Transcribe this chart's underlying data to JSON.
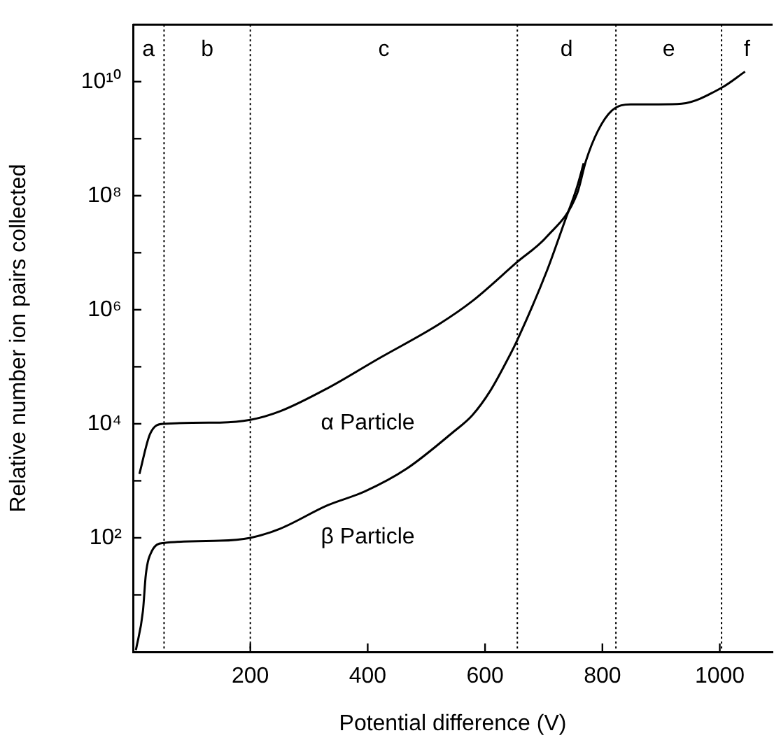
{
  "chart_data": {
    "type": "line",
    "xlabel": "Potential difference (V)",
    "ylabel": "Relative number ion pairs collected",
    "log": "y",
    "xlim": [
      0,
      1090
    ],
    "xticks": [
      200,
      400,
      600,
      800,
      1000
    ],
    "ylim": [
      1,
      100000000000
    ],
    "yticks": [
      {
        "value": 10,
        "label": null
      },
      {
        "value": 100,
        "label": "10²"
      },
      {
        "value": 1000,
        "label": null
      },
      {
        "value": 10000,
        "label": "10⁴"
      },
      {
        "value": 100000,
        "label": null
      },
      {
        "value": 1000000,
        "label": "10⁶"
      },
      {
        "value": 10000000,
        "label": null
      },
      {
        "value": 100000000,
        "label": "10⁸"
      },
      {
        "value": 1000000000,
        "label": null
      },
      {
        "value": 10000000000,
        "label": "10¹⁰"
      }
    ],
    "grid": false,
    "legend": false,
    "marker": "none",
    "line_style": "solid",
    "series": [
      {
        "name": "α Particle",
        "color": "#000000",
        "x": [
          11,
          29,
          52,
          148,
          200,
          251,
          331,
          418,
          522,
          578,
          655,
          705,
          757,
          772,
          792,
          816,
          848,
          896,
          935,
          1003,
          1043
        ],
        "values": [
          1320,
          6600,
          10000,
          10500,
          11700,
          16600,
          41700,
          138000,
          562000,
          1410000,
          6900000,
          19000000,
          110000000,
          410000000,
          1350000000,
          3100000000,
          4000000000,
          4000000000,
          4100000000,
          7800000000,
          15000000000
        ]
      },
      {
        "name": "β Particle",
        "color": "#000000",
        "x": [
          5,
          17,
          22,
          32,
          52,
          148,
          200,
          251,
          331,
          395,
          466,
          546,
          578,
          609,
          641,
          655,
          705,
          736,
          757,
          768
        ],
        "values": [
          1.07,
          5.2,
          23,
          58,
          81,
          89,
          100,
          145,
          370,
          650,
          1620,
          7200,
          14000,
          38000,
          151000,
          295000,
          4700000,
          36000000,
          145000000,
          370000000
        ]
      }
    ],
    "ref_lines": [
      {
        "axis": "x",
        "value": 53,
        "line_style": "dotted",
        "color": "#000000"
      },
      {
        "axis": "x",
        "value": 200,
        "line_style": "dotted",
        "color": "#000000"
      },
      {
        "axis": "x",
        "value": 655,
        "line_style": "dotted",
        "color": "#000000"
      },
      {
        "axis": "x",
        "value": 823,
        "line_style": "dotted",
        "color": "#000000"
      },
      {
        "axis": "x",
        "value": 1003,
        "line_style": "dotted",
        "color": "#000000"
      }
    ],
    "annotations": [
      "a",
      "b",
      "c",
      "d",
      "e",
      "f"
    ]
  }
}
